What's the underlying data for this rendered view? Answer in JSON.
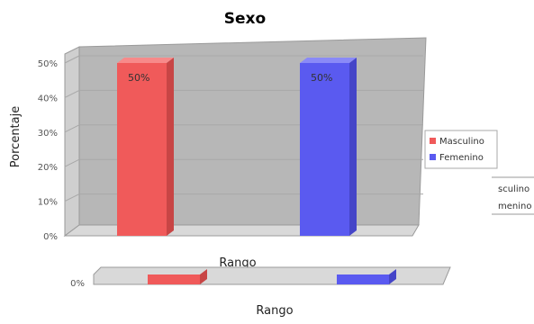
{
  "chart_data": {
    "type": "bar",
    "title": "Sexo",
    "xlabel": "Rango",
    "ylabel": "Porcentaje",
    "categories": [
      ""
    ],
    "series": [
      {
        "name": "Masculino",
        "values": [
          50
        ],
        "color": "#f05a5a",
        "label": "50%"
      },
      {
        "name": "Femenino",
        "values": [
          50
        ],
        "color": "#5a5af0",
        "label": "50%"
      }
    ],
    "ylim": [
      0,
      50
    ],
    "yticks": [
      "0%",
      "10%",
      "20%",
      "30%",
      "40%",
      "50%"
    ],
    "grid": true,
    "legend_position": "right",
    "legend": [
      "Masculino",
      "Femenino"
    ]
  },
  "ghost": {
    "tick": "0%",
    "xlabel": "Rango",
    "legend_fragments": [
      "sculino",
      "menino"
    ]
  }
}
